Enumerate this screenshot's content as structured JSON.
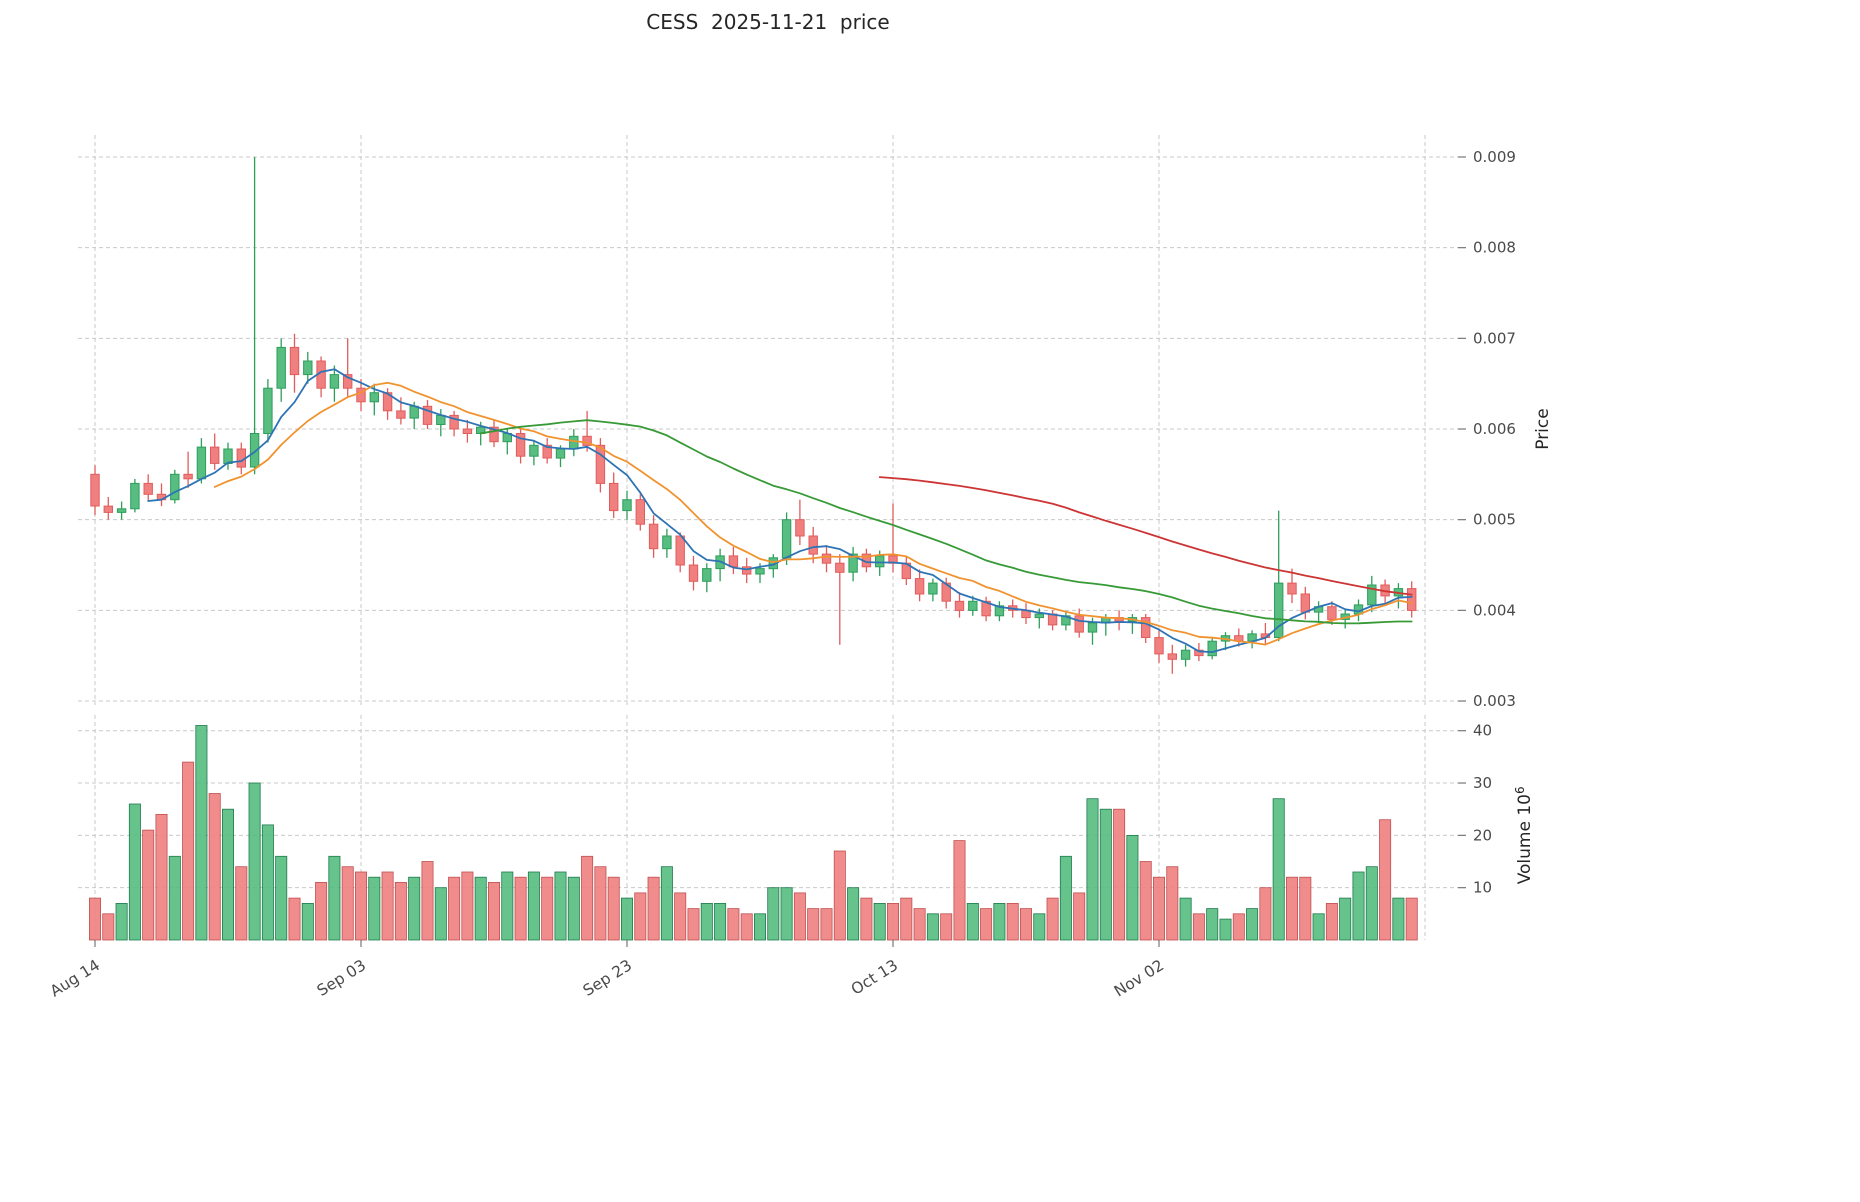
{
  "chart_data": {
    "type": "candlestick",
    "title": "CESS  2025-11-21  price",
    "ylabel": "Price",
    "volume_axis_label": {
      "text": "Volume",
      "scale_base": "10",
      "scale_exp": "6"
    },
    "x_start_date": "2025-08-14",
    "x_end_date": "2025-11-21",
    "frequency": "daily",
    "grid": true,
    "legend": "none",
    "price_ylim": [
      0.00296,
      0.00924
    ],
    "volume_ylim": [
      0,
      43
    ],
    "price_ticks": [
      0.003,
      0.004,
      0.005,
      0.006,
      0.007,
      0.008,
      0.009
    ],
    "volume_ticks": [
      10,
      20,
      30,
      40
    ],
    "x_ticks": [
      {
        "label": "Aug 14",
        "i": 0
      },
      {
        "label": "Sep 03",
        "i": 20
      },
      {
        "label": "Sep 23",
        "i": 40
      },
      {
        "label": "Oct 13",
        "i": 60
      },
      {
        "label": "Nov 02",
        "i": 80
      },
      {
        "label": "",
        "i": 100
      }
    ],
    "moving_averages": [
      {
        "window": 5,
        "color": "#2e74b5"
      },
      {
        "window": 10,
        "color": "#f0932f"
      },
      {
        "window": 30,
        "color": "#379a37"
      },
      {
        "window": 60,
        "color": "#cd3434"
      }
    ],
    "colors": {
      "up": "#57bd80",
      "up_edge": "#2e9e5b",
      "down": "#f08080",
      "down_edge": "#e05c5c",
      "volume_up_edge": "#1f7a4d",
      "volume_down_edge": "#c05050",
      "grid": "#c9c9c9",
      "tick_text": "#4a4a4a",
      "title_text": "#262626"
    },
    "ohlc": [
      [
        0.0055,
        0.0056,
        0.00505,
        0.00515
      ],
      [
        0.00515,
        0.00525,
        0.005,
        0.00508
      ],
      [
        0.00508,
        0.0052,
        0.005,
        0.00512
      ],
      [
        0.00512,
        0.00545,
        0.00508,
        0.0054
      ],
      [
        0.0054,
        0.0055,
        0.0052,
        0.00528
      ],
      [
        0.00528,
        0.0054,
        0.00515,
        0.00522
      ],
      [
        0.00522,
        0.00555,
        0.00518,
        0.0055
      ],
      [
        0.0055,
        0.00575,
        0.00535,
        0.00545
      ],
      [
        0.00545,
        0.0059,
        0.0054,
        0.0058
      ],
      [
        0.0058,
        0.00595,
        0.00555,
        0.00562
      ],
      [
        0.00562,
        0.00585,
        0.00555,
        0.00578
      ],
      [
        0.00578,
        0.00585,
        0.0055,
        0.00558
      ],
      [
        0.00558,
        0.009,
        0.0055,
        0.00595
      ],
      [
        0.00595,
        0.00655,
        0.00585,
        0.00645
      ],
      [
        0.00645,
        0.007,
        0.0063,
        0.0069
      ],
      [
        0.0069,
        0.00705,
        0.0064,
        0.0066
      ],
      [
        0.0066,
        0.00685,
        0.0065,
        0.00675
      ],
      [
        0.00675,
        0.0068,
        0.00635,
        0.00645
      ],
      [
        0.00645,
        0.0067,
        0.0063,
        0.0066
      ],
      [
        0.0066,
        0.007,
        0.00635,
        0.00645
      ],
      [
        0.00645,
        0.00655,
        0.0062,
        0.0063
      ],
      [
        0.0063,
        0.0065,
        0.00615,
        0.0064
      ],
      [
        0.0064,
        0.00645,
        0.0061,
        0.0062
      ],
      [
        0.0062,
        0.00635,
        0.00605,
        0.00612
      ],
      [
        0.00612,
        0.0063,
        0.006,
        0.00625
      ],
      [
        0.00625,
        0.00632,
        0.006,
        0.00605
      ],
      [
        0.00605,
        0.00622,
        0.00592,
        0.00615
      ],
      [
        0.00615,
        0.0062,
        0.00592,
        0.006
      ],
      [
        0.006,
        0.0061,
        0.00585,
        0.00595
      ],
      [
        0.00595,
        0.00608,
        0.00582,
        0.00602
      ],
      [
        0.00602,
        0.0061,
        0.0058,
        0.00586
      ],
      [
        0.00586,
        0.006,
        0.00572,
        0.00595
      ],
      [
        0.00595,
        0.006,
        0.00562,
        0.0057
      ],
      [
        0.0057,
        0.00588,
        0.0056,
        0.00582
      ],
      [
        0.00582,
        0.0059,
        0.00562,
        0.00568
      ],
      [
        0.00568,
        0.00582,
        0.00558,
        0.00578
      ],
      [
        0.00578,
        0.006,
        0.0057,
        0.00592
      ],
      [
        0.00592,
        0.0062,
        0.00575,
        0.00582
      ],
      [
        0.00582,
        0.0059,
        0.0053,
        0.0054
      ],
      [
        0.0054,
        0.00552,
        0.00502,
        0.0051
      ],
      [
        0.0051,
        0.00532,
        0.005,
        0.00522
      ],
      [
        0.00522,
        0.00528,
        0.00488,
        0.00495
      ],
      [
        0.00495,
        0.00505,
        0.00458,
        0.00468
      ],
      [
        0.00468,
        0.0049,
        0.00458,
        0.00482
      ],
      [
        0.00482,
        0.00486,
        0.00442,
        0.0045
      ],
      [
        0.0045,
        0.0046,
        0.00422,
        0.00432
      ],
      [
        0.00432,
        0.00452,
        0.0042,
        0.00446
      ],
      [
        0.00446,
        0.00468,
        0.00432,
        0.0046
      ],
      [
        0.0046,
        0.0047,
        0.0044,
        0.00448
      ],
      [
        0.00448,
        0.00458,
        0.0043,
        0.0044
      ],
      [
        0.0044,
        0.00452,
        0.0043,
        0.00446
      ],
      [
        0.00446,
        0.00462,
        0.00436,
        0.00458
      ],
      [
        0.00458,
        0.00508,
        0.0045,
        0.005
      ],
      [
        0.005,
        0.00522,
        0.00472,
        0.00482
      ],
      [
        0.00482,
        0.00492,
        0.00452,
        0.00462
      ],
      [
        0.00462,
        0.00472,
        0.00442,
        0.00452
      ],
      [
        0.00452,
        0.00462,
        0.00362,
        0.00442
      ],
      [
        0.00442,
        0.0047,
        0.00432,
        0.00462
      ],
      [
        0.00462,
        0.00468,
        0.00442,
        0.00448
      ],
      [
        0.00448,
        0.00466,
        0.00438,
        0.0046
      ],
      [
        0.0046,
        0.00518,
        0.00442,
        0.00452
      ],
      [
        0.00452,
        0.0046,
        0.00428,
        0.00435
      ],
      [
        0.00435,
        0.00445,
        0.0041,
        0.00418
      ],
      [
        0.00418,
        0.00435,
        0.0041,
        0.0043
      ],
      [
        0.0043,
        0.00436,
        0.00402,
        0.0041
      ],
      [
        0.0041,
        0.0042,
        0.00392,
        0.004
      ],
      [
        0.004,
        0.00416,
        0.00394,
        0.0041
      ],
      [
        0.0041,
        0.00415,
        0.00388,
        0.00394
      ],
      [
        0.00394,
        0.0041,
        0.00388,
        0.00405
      ],
      [
        0.00405,
        0.00412,
        0.00392,
        0.004
      ],
      [
        0.004,
        0.00408,
        0.00385,
        0.00392
      ],
      [
        0.00392,
        0.00402,
        0.0038,
        0.00396
      ],
      [
        0.00396,
        0.004,
        0.00378,
        0.00384
      ],
      [
        0.00384,
        0.00398,
        0.00378,
        0.00394
      ],
      [
        0.00394,
        0.00402,
        0.0037,
        0.00376
      ],
      [
        0.00376,
        0.00392,
        0.00362,
        0.00386
      ],
      [
        0.00386,
        0.00396,
        0.00372,
        0.00392
      ],
      [
        0.00392,
        0.004,
        0.00378,
        0.00388
      ],
      [
        0.00388,
        0.00396,
        0.00374,
        0.00392
      ],
      [
        0.00392,
        0.00396,
        0.00364,
        0.0037
      ],
      [
        0.0037,
        0.00378,
        0.00342,
        0.00352
      ],
      [
        0.00352,
        0.00362,
        0.0033,
        0.00346
      ],
      [
        0.00346,
        0.00362,
        0.00338,
        0.00356
      ],
      [
        0.00356,
        0.00364,
        0.00344,
        0.0035
      ],
      [
        0.0035,
        0.0037,
        0.00346,
        0.00366
      ],
      [
        0.00366,
        0.00376,
        0.00356,
        0.00372
      ],
      [
        0.00372,
        0.0038,
        0.0036,
        0.00366
      ],
      [
        0.00366,
        0.00378,
        0.00358,
        0.00374
      ],
      [
        0.00374,
        0.00386,
        0.00362,
        0.0037
      ],
      [
        0.0037,
        0.0051,
        0.00366,
        0.0043
      ],
      [
        0.0043,
        0.00446,
        0.00408,
        0.00418
      ],
      [
        0.00418,
        0.00426,
        0.0039,
        0.00398
      ],
      [
        0.00398,
        0.0041,
        0.00386,
        0.00404
      ],
      [
        0.00404,
        0.0041,
        0.00384,
        0.0039
      ],
      [
        0.0039,
        0.00402,
        0.0038,
        0.00396
      ],
      [
        0.00396,
        0.00412,
        0.00388,
        0.00406
      ],
      [
        0.00406,
        0.00438,
        0.00398,
        0.00428
      ],
      [
        0.00428,
        0.00434,
        0.00408,
        0.00416
      ],
      [
        0.00416,
        0.0043,
        0.00402,
        0.00424
      ],
      [
        0.00424,
        0.00432,
        0.00392,
        0.004
      ]
    ],
    "volume": [
      8,
      5,
      7,
      26,
      21,
      24,
      16,
      34,
      41,
      28,
      25,
      14,
      30,
      22,
      16,
      8,
      7,
      11,
      16,
      14,
      13,
      12,
      13,
      11,
      12,
      15,
      10,
      12,
      13,
      12,
      11,
      13,
      12,
      13,
      12,
      13,
      12,
      16,
      14,
      12,
      8,
      9,
      12,
      14,
      9,
      6,
      7,
      7,
      6,
      5,
      5,
      10,
      10,
      9,
      6,
      6,
      17,
      10,
      8,
      7,
      7,
      8,
      6,
      5,
      5,
      19,
      7,
      6,
      7,
      7,
      6,
      5,
      8,
      16,
      9,
      27,
      25,
      25,
      20,
      15,
      12,
      14,
      8,
      5,
      6,
      4,
      5,
      6,
      10,
      27,
      12,
      12,
      5,
      7,
      8,
      13,
      14,
      23,
      8,
      8
    ]
  }
}
